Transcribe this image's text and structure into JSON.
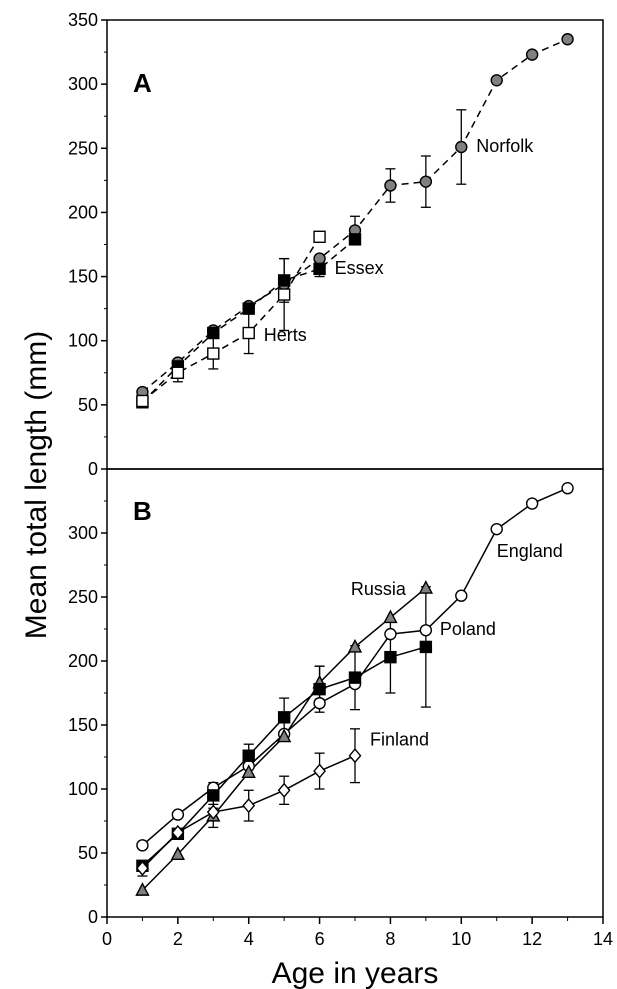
{
  "figure": {
    "ylabel": "Mean total length (mm)",
    "xlabel": "Age in years",
    "x_ticks": [
      "0",
      "2",
      "4",
      "6",
      "8",
      "10",
      "12",
      "14"
    ],
    "y_ticks_a": [
      "0",
      "50",
      "100",
      "150",
      "200",
      "250",
      "300",
      "350"
    ],
    "y_ticks_b": [
      "0",
      "50",
      "100",
      "150",
      "200",
      "250",
      "300"
    ]
  },
  "chart_data": [
    {
      "type": "line",
      "panel": "A",
      "xlim": [
        0,
        14
      ],
      "ylim": [
        0,
        350
      ],
      "grid": false,
      "line_style": "dashed",
      "series": [
        {
          "name": "Norfolk",
          "marker": "circle",
          "fill": "#808080",
          "x": [
            1,
            2,
            3,
            4,
            5,
            6,
            7,
            8,
            9,
            10,
            11,
            12,
            13
          ],
          "y": [
            60,
            83,
            108,
            127,
            144,
            164,
            186,
            221,
            224,
            251,
            303,
            323,
            335
          ],
          "err": [
            0,
            0,
            0,
            0,
            0,
            0,
            11,
            13,
            20,
            29,
            0,
            0,
            0
          ]
        },
        {
          "name": "Essex",
          "marker": "square",
          "fill": "#000000",
          "x": [
            1,
            2,
            3,
            4,
            5,
            6,
            7
          ],
          "y": [
            52,
            80,
            106,
            125,
            147,
            156,
            179
          ],
          "err": [
            4,
            4,
            4,
            4,
            17,
            6,
            4
          ]
        },
        {
          "name": "Herts",
          "marker": "square",
          "fill": "#ffffff",
          "x": [
            1,
            2,
            3,
            4,
            5,
            6
          ],
          "y": [
            53,
            75,
            90,
            106,
            136,
            181
          ],
          "err": [
            0,
            7,
            12,
            16,
            28,
            0
          ]
        }
      ]
    },
    {
      "type": "line",
      "panel": "B",
      "xlim": [
        0,
        14
      ],
      "ylim": [
        0,
        350
      ],
      "grid": false,
      "line_style": "solid",
      "series": [
        {
          "name": "England",
          "marker": "circle",
          "fill": "#ffffff",
          "x": [
            1,
            2,
            3,
            4,
            5,
            6,
            7,
            8,
            9,
            10,
            11,
            12,
            13
          ],
          "y": [
            56,
            80,
            101,
            118,
            143,
            167,
            182,
            221,
            224,
            251,
            303,
            323,
            335
          ],
          "err": [
            0,
            0,
            0,
            0,
            0,
            0,
            0,
            0,
            0,
            0,
            0,
            0,
            0
          ]
        },
        {
          "name": "Russia",
          "marker": "triangle",
          "fill": "#808080",
          "x": [
            1,
            2,
            3,
            4,
            5,
            6,
            7,
            8,
            9
          ],
          "y": [
            21,
            49,
            79,
            113,
            141,
            183,
            211,
            234,
            257
          ],
          "err": [
            0,
            0,
            9,
            0,
            0,
            13,
            0,
            0,
            0
          ]
        },
        {
          "name": "Poland",
          "marker": "square",
          "fill": "#000000",
          "x": [
            1,
            2,
            3,
            4,
            5,
            6,
            7,
            8,
            9
          ],
          "y": [
            40,
            65,
            95,
            126,
            156,
            178,
            187,
            203,
            211
          ],
          "err": [
            4,
            0,
            10,
            9,
            15,
            18,
            25,
            28,
            47
          ]
        },
        {
          "name": "Finland",
          "marker": "diamond",
          "fill": "#ffffff",
          "x": [
            1,
            2,
            3,
            4,
            5,
            6,
            7
          ],
          "y": [
            38,
            66,
            82,
            87,
            99,
            114,
            126
          ],
          "err": [
            6,
            0,
            0,
            12,
            11,
            14,
            21
          ]
        }
      ]
    }
  ]
}
